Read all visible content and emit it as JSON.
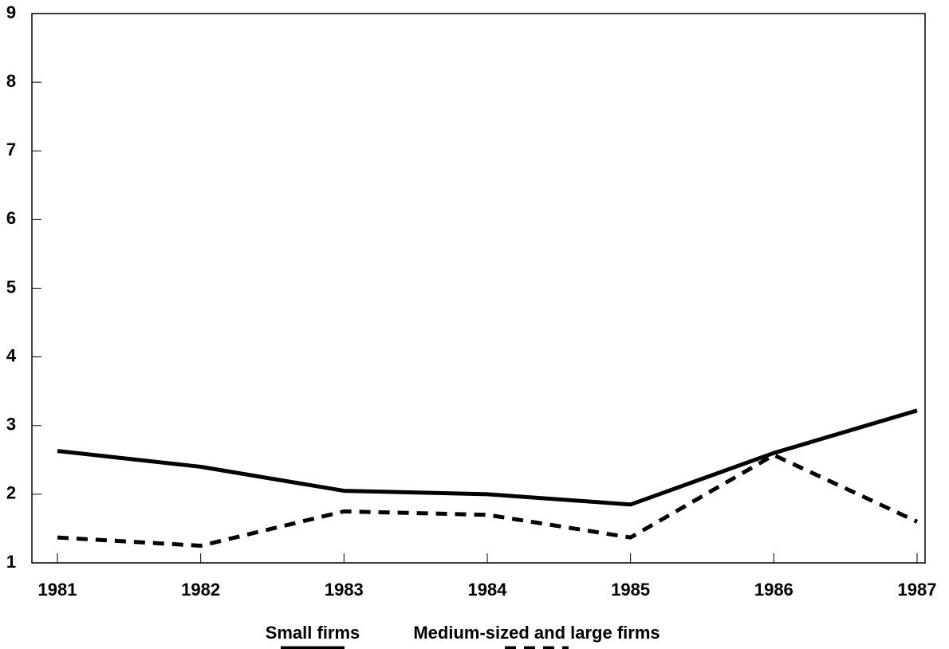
{
  "chart_data": {
    "type": "line",
    "categories": [
      "1981",
      "1982",
      "1983",
      "1984",
      "1985",
      "1986",
      "1987"
    ],
    "series": [
      {
        "name": "Small firms",
        "color": "#000000",
        "style": "solid",
        "values": [
          2.63,
          2.4,
          2.05,
          2.0,
          1.85,
          2.6,
          3.22
        ]
      },
      {
        "name": "Medium-sized and large firms",
        "color": "#000000",
        "style": "dashed",
        "values": [
          1.37,
          1.25,
          1.75,
          1.7,
          1.37,
          2.57,
          1.6
        ]
      }
    ],
    "ylim": [
      1,
      9
    ],
    "yticks": [
      1,
      2,
      3,
      4,
      5,
      6,
      7,
      8,
      9
    ],
    "grid": false,
    "legend": "bottom"
  }
}
